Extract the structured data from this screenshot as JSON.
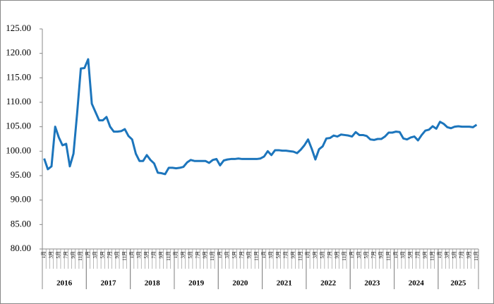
{
  "chart_data": {
    "type": "line",
    "categories": [
      "1月",
      null,
      "3月",
      null,
      "5月",
      null,
      "7月",
      null,
      "9月",
      null,
      "11月",
      null,
      "1月",
      null,
      "3月",
      null,
      "5月",
      null,
      "7月",
      null,
      "9月",
      null,
      "11月",
      null,
      "1月",
      null,
      "3月",
      null,
      "5月",
      null,
      "7月",
      null,
      "9月",
      null,
      "11月",
      null,
      "1月",
      null,
      "3月",
      null,
      "5月",
      null,
      "7月",
      null,
      "9月",
      null,
      "11月",
      null,
      "1月",
      null,
      "3月",
      null,
      "5月",
      null,
      "7月",
      null,
      "9月",
      null,
      "11月",
      null,
      "1月",
      null,
      "3月",
      null,
      "5月",
      null,
      "7月",
      null,
      "9月",
      null,
      "11月",
      null,
      "1月",
      null,
      "3月",
      null,
      "5月",
      null,
      "7月",
      null,
      "9月",
      null,
      "11月",
      null,
      "1月",
      null,
      "3月",
      null,
      "5月",
      null,
      "7月",
      null,
      "9月",
      null,
      "11月",
      null,
      "1月",
      null,
      "3月",
      null,
      "5月",
      null,
      "7月",
      null,
      "9月",
      null,
      "11月",
      null,
      "1月",
      null,
      "3月",
      null,
      "5月",
      null,
      "7月",
      null,
      "9月",
      null,
      "11月"
    ],
    "years": [
      "2016",
      "2017",
      "2018",
      "2019",
      "2020",
      "2021",
      "2022",
      "2023",
      "2024",
      "2025"
    ],
    "series": [
      {
        "color": "#1c75bc",
        "values": [
          98.5,
          96.3,
          96.9,
          105.0,
          102.8,
          101.2,
          101.5,
          96.9,
          99.5,
          107.8,
          116.9,
          117.0,
          118.8,
          109.7,
          108.0,
          106.3,
          106.3,
          107.0,
          105.0,
          104.0,
          104.0,
          104.1,
          104.5,
          103.1,
          102.4,
          99.5,
          98.0,
          98.0,
          99.2,
          98.2,
          97.5,
          95.6,
          95.5,
          95.3,
          96.6,
          96.6,
          96.5,
          96.6,
          96.8,
          97.7,
          98.2,
          98.0,
          98.0,
          98.0,
          98.0,
          97.6,
          98.2,
          98.4,
          97.1,
          98.1,
          98.3,
          98.4,
          98.4,
          98.5,
          98.4,
          98.4,
          98.4,
          98.4,
          98.4,
          98.5,
          98.9,
          100.0,
          99.2,
          100.2,
          100.2,
          100.1,
          100.1,
          100.0,
          99.9,
          99.6,
          100.3,
          101.2,
          102.4,
          100.5,
          98.3,
          100.4,
          101.0,
          102.6,
          102.7,
          103.2,
          103.0,
          103.4,
          103.3,
          103.2,
          103.0,
          103.9,
          103.3,
          103.3,
          103.1,
          102.4,
          102.3,
          102.5,
          102.5,
          103.0,
          103.8,
          103.8,
          104.0,
          103.9,
          102.6,
          102.4,
          102.8,
          103.0,
          102.2,
          103.3,
          104.2,
          104.4,
          105.1,
          104.6,
          106.0,
          105.6,
          104.9,
          104.7,
          105.0,
          105.1,
          105.0,
          105.0,
          105.0,
          104.9,
          105.4
        ]
      }
    ],
    "ylim": [
      80,
      125
    ],
    "yticks": [
      {
        "value": 80,
        "label": "80.00"
      },
      {
        "value": 85,
        "label": "85.00"
      },
      {
        "value": 90,
        "label": "90.00"
      },
      {
        "value": 95,
        "label": "95.00"
      },
      {
        "value": 100,
        "label": "100.00"
      },
      {
        "value": 105,
        "label": "105.00"
      },
      {
        "value": 110,
        "label": "110.00"
      },
      {
        "value": 115,
        "label": "115.00"
      },
      {
        "value": 120,
        "label": "120.00"
      },
      {
        "value": 125,
        "label": "125.00"
      }
    ]
  }
}
